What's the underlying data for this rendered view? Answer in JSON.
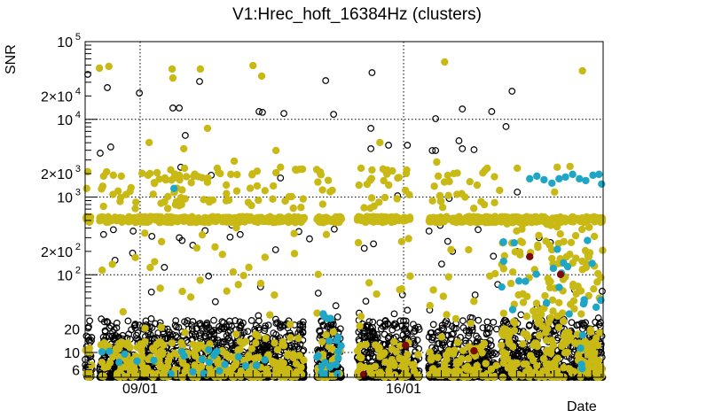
{
  "chart_data": {
    "type": "scatter",
    "title": "V1:Hrec_hoft_16384Hz (clusters)",
    "xlabel": "Date",
    "ylabel": "SNR",
    "x_units": "days since 09/01 00:00",
    "xlim": [
      -1.46,
      12.3
    ],
    "ylim": [
      4.8,
      100000
    ],
    "yscale": "log",
    "grid": true,
    "x_ticks": [
      {
        "value": 0,
        "label": "09/01"
      },
      {
        "value": 7,
        "label": "16/01"
      }
    ],
    "y_ticks": [
      {
        "value": 6,
        "label": "6"
      },
      {
        "value": 10,
        "label": "10"
      },
      {
        "value": 20,
        "label": "20"
      },
      {
        "value": 100,
        "label": "10",
        "exp": "2"
      },
      {
        "value": 200,
        "label": "2×10",
        "exp": "2"
      },
      {
        "value": 1000,
        "label": "10",
        "exp": "3"
      },
      {
        "value": 2000,
        "label": "2×10",
        "exp": "3"
      },
      {
        "value": 10000,
        "label": "10",
        "exp": "4"
      },
      {
        "value": 20000,
        "label": "2×10",
        "exp": "4"
      },
      {
        "value": 100000,
        "label": "10",
        "exp": "5"
      }
    ],
    "colors": {
      "open": "#000000",
      "yellow": "#c8b914",
      "cyan": "#1fa6c6",
      "maroon": "#7a0c0c"
    },
    "series": [
      {
        "name": "open",
        "points": [
          [
            -1.39,
            37900
          ],
          [
            -0.87,
            25600
          ],
          [
            -0.02,
            21800
          ],
          [
            0.87,
            14000
          ],
          [
            1.04,
            14000
          ],
          [
            1.58,
            30700
          ],
          [
            3.16,
            12600
          ],
          [
            3.25,
            12300
          ],
          [
            3.82,
            11900
          ],
          [
            4.93,
            31500
          ],
          [
            5.14,
            11600
          ],
          [
            1.2,
            6210
          ],
          [
            -1.06,
            3670
          ],
          [
            -0.78,
            4410
          ],
          [
            1.08,
            2420
          ],
          [
            1.89,
            1910
          ],
          [
            3.73,
            1760
          ],
          [
            4.79,
            2010
          ],
          [
            6.16,
            39900
          ],
          [
            6.13,
            7660
          ],
          [
            6.13,
            4190
          ],
          [
            6.6,
            4650
          ],
          [
            7.1,
            4650
          ],
          [
            7.85,
            3970
          ],
          [
            7.85,
            10200
          ],
          [
            8.56,
            13600
          ],
          [
            9.34,
            12600
          ],
          [
            9.72,
            8070
          ],
          [
            9.88,
            23000
          ],
          [
            8.47,
            5300
          ],
          [
            8.56,
            4190
          ],
          [
            8.87,
            4070
          ],
          [
            7.76,
            3970
          ],
          [
            6.84,
            1040
          ],
          [
            10.02,
            1160
          ],
          [
            8.21,
            960
          ],
          [
            -0.97,
            330
          ],
          [
            1.04,
            300
          ],
          [
            4.5,
            290
          ],
          [
            3.6,
            210
          ],
          [
            1.4,
            240
          ],
          [
            -0.2,
            190
          ],
          [
            6.2,
            250
          ],
          [
            8.3,
            200
          ],
          [
            10.6,
            300
          ],
          [
            10.9,
            260
          ],
          [
            0.3,
            60
          ],
          [
            2.0,
            45
          ],
          [
            3.2,
            70
          ],
          [
            5.2,
            40
          ],
          [
            7.1,
            35
          ],
          [
            8.9,
            55
          ],
          [
            9.5,
            75
          ]
        ]
      },
      {
        "name": "yellow",
        "points": [
          [
            -1.08,
            45500
          ],
          [
            -0.83,
            48000
          ],
          [
            0.85,
            44400
          ],
          [
            0.87,
            34000
          ],
          [
            1.6,
            44400
          ],
          [
            3.0,
            49200
          ],
          [
            3.23,
            36000
          ],
          [
            1.79,
            7660
          ],
          [
            0.24,
            5030
          ],
          [
            1.16,
            4190
          ],
          [
            -1.39,
            2120
          ],
          [
            -0.97,
            1860
          ],
          [
            -0.71,
            1910
          ],
          [
            -0.5,
            1860
          ],
          [
            -0.24,
            1320
          ],
          [
            -1.42,
            1290
          ],
          [
            0.21,
            1910
          ],
          [
            0.45,
            2060
          ],
          [
            0.66,
            1760
          ],
          [
            1.04,
            1910
          ],
          [
            1.18,
            2350
          ],
          [
            1.79,
            1550
          ],
          [
            2.29,
            1430
          ],
          [
            2.05,
            2350
          ],
          [
            2.41,
            1960
          ],
          [
            2.5,
            2900
          ],
          [
            3.11,
            1390
          ],
          [
            3.61,
            3970
          ],
          [
            3.73,
            2420
          ],
          [
            3.54,
            1390
          ],
          [
            8.09,
            54700
          ],
          [
            11.75,
            42100
          ],
          [
            6.37,
            5030
          ],
          [
            7.88,
            2820
          ],
          [
            5.87,
            2350
          ],
          [
            6.16,
            2230
          ],
          [
            6.56,
            2230
          ],
          [
            6.7,
            2170
          ],
          [
            7.08,
            2230
          ],
          [
            7.92,
            1860
          ],
          [
            9.22,
            2350
          ],
          [
            10.02,
            2350
          ],
          [
            11.08,
            2420
          ],
          [
            11.42,
            2480
          ],
          [
            11.01,
            1160
          ],
          [
            7.15,
            1070
          ],
          [
            9.55,
            1220
          ]
        ]
      },
      {
        "name": "cyan",
        "points": [
          [
            0.9,
            1290
          ],
          [
            10.35,
            1720
          ],
          [
            10.54,
            1860
          ],
          [
            10.73,
            1670
          ],
          [
            10.94,
            1510
          ],
          [
            11.13,
            1720
          ],
          [
            11.3,
            1810
          ],
          [
            11.49,
            1960
          ],
          [
            11.67,
            1720
          ],
          [
            11.84,
            1630
          ],
          [
            12.03,
            1910
          ],
          [
            12.19,
            1960
          ],
          [
            12.26,
            1470
          ]
        ]
      },
      {
        "name": "maroon",
        "points": [
          [
            10.35,
            171
          ],
          [
            11.17,
            101
          ],
          [
            5.94,
            5.2
          ],
          [
            7.05,
            12.4
          ],
          [
            8.87,
            10.5
          ]
        ]
      }
    ],
    "dense_clusters": [
      {
        "series": "open",
        "ranges": [
          [
            -1.46,
            -1.27
          ],
          [
            -1.08,
            3.46
          ],
          [
            3.51,
            4.36
          ],
          [
            4.69,
            5.35
          ],
          [
            5.77,
            7.19
          ],
          [
            7.24,
            7.42
          ],
          [
            7.66,
            9.47
          ],
          [
            9.59,
            12.3
          ]
        ],
        "ylim": [
          4.8,
          26
        ],
        "skew": 2.6,
        "per_day": 240
      },
      {
        "series": "open",
        "ranges": [
          [
            -1.08,
            3.46
          ],
          [
            3.51,
            4.36
          ],
          [
            4.69,
            5.35
          ],
          [
            5.77,
            7.19
          ],
          [
            7.66,
            9.47
          ],
          [
            9.59,
            12.3
          ]
        ],
        "ylim": [
          20,
          500
        ],
        "skew": 1.6,
        "per_day": 5
      },
      {
        "series": "yellow",
        "ranges": [
          [
            -1.46,
            -1.27
          ],
          [
            -1.08,
            3.46
          ],
          [
            3.51,
            4.36
          ],
          [
            4.69,
            5.35
          ],
          [
            5.77,
            7.19
          ],
          [
            7.24,
            7.42
          ],
          [
            7.66,
            9.47
          ],
          [
            9.59,
            12.3
          ]
        ],
        "ylim": [
          4.8,
          14
        ],
        "skew": 1.6,
        "per_day": 45
      },
      {
        "series": "yellow",
        "ranges": [
          [
            -1.46,
            -1.27
          ],
          [
            -1.08,
            3.46
          ],
          [
            3.51,
            4.36
          ],
          [
            4.69,
            5.35
          ],
          [
            5.77,
            7.19
          ],
          [
            7.66,
            9.47
          ],
          [
            9.59,
            12.3
          ]
        ],
        "ylim": [
          470,
          560
        ],
        "skew": 1,
        "per_day": 60
      },
      {
        "series": "yellow",
        "ranges": [
          [
            -1.08,
            3.46
          ],
          [
            3.51,
            4.36
          ],
          [
            4.69,
            5.35
          ],
          [
            5.77,
            7.19
          ],
          [
            7.66,
            9.47
          ]
        ],
        "ylim": [
          700,
          2300
        ],
        "skew": 1,
        "per_day": 14
      },
      {
        "series": "yellow",
        "ranges": [
          [
            -1.08,
            3.46
          ],
          [
            3.51,
            4.36
          ],
          [
            4.69,
            5.35
          ],
          [
            5.77,
            7.19
          ],
          [
            7.66,
            9.47
          ]
        ],
        "ylim": [
          15,
          420
        ],
        "skew": 1.3,
        "per_day": 7
      },
      {
        "series": "yellow",
        "ranges": [
          [
            9.59,
            12.3
          ]
        ],
        "ylim": [
          12,
          480
        ],
        "skew": 1.3,
        "per_day": 55
      },
      {
        "series": "cyan",
        "ranges": [
          [
            -1.08,
            3.46
          ]
        ],
        "ylim": [
          5,
          11
        ],
        "skew": 1,
        "per_day": 5
      },
      {
        "series": "cyan",
        "ranges": [
          [
            4.69,
            5.35
          ]
        ],
        "ylim": [
          5,
          40
        ],
        "skew": 1.4,
        "per_day": 30
      },
      {
        "series": "cyan",
        "ranges": [
          [
            9.59,
            12.3
          ]
        ],
        "ylim": [
          30,
          320
        ],
        "skew": 1,
        "per_day": 8
      },
      {
        "series": "cyan",
        "ranges": [
          [
            11.7,
            11.8
          ]
        ],
        "ylim": [
          5,
          60
        ],
        "skew": 1,
        "per_day": 60
      }
    ]
  }
}
